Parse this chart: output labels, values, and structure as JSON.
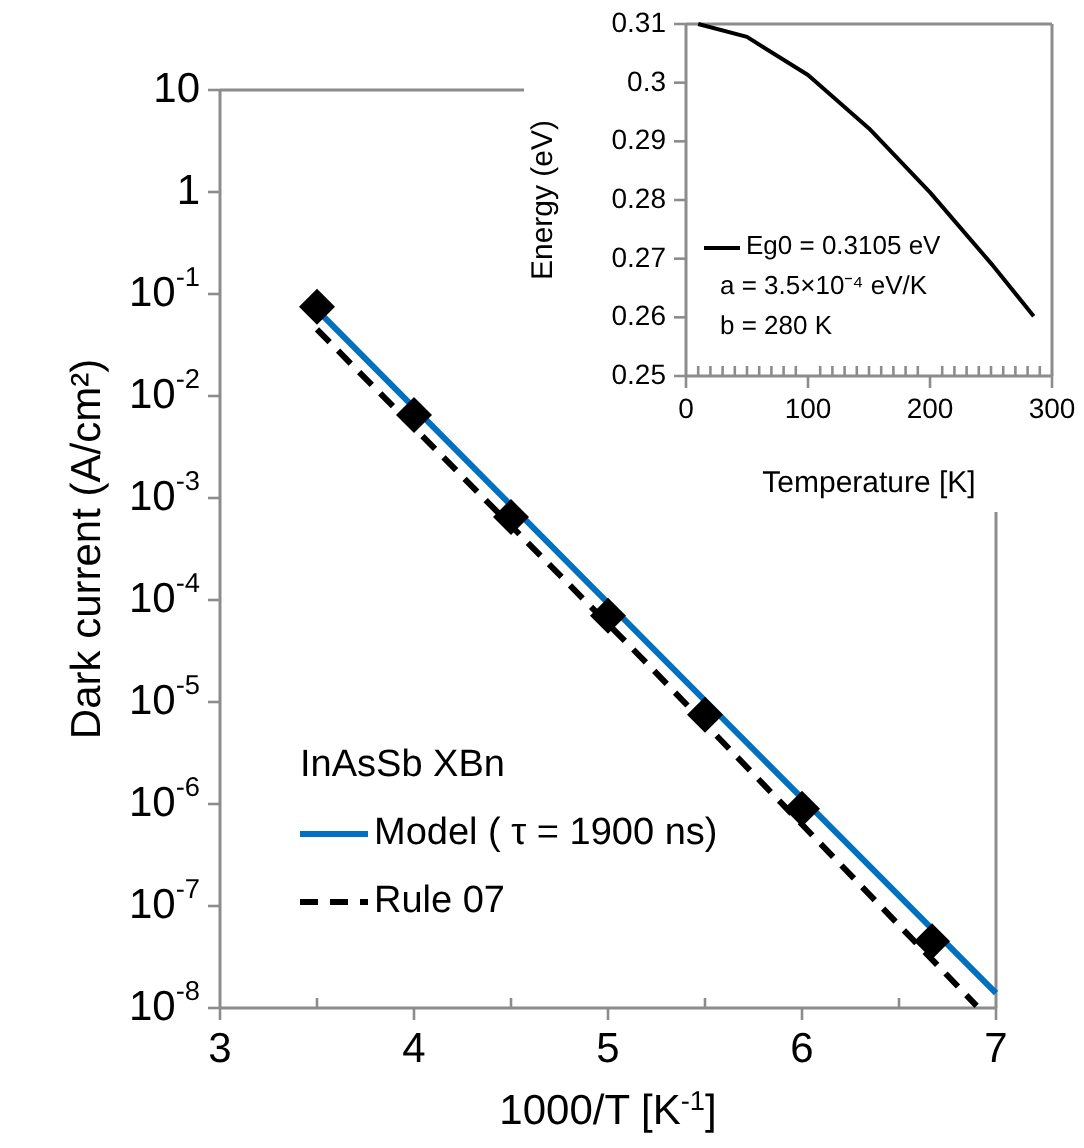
{
  "chart_data": [
    {
      "type": "line",
      "xlabel": "1000/T [K$^{-1}$]",
      "ylabel": "Dark current (A/cm²)",
      "legend_title": "InAsSb XBn",
      "legend": "bottom left",
      "log": "y",
      "grid": false,
      "xlim": [
        3,
        7
      ],
      "xticks": [
        3,
        {
          "value": 3.5,
          "label": null
        },
        4,
        {
          "value": 4.5,
          "label": null
        },
        5,
        {
          "value": 5.5,
          "label": null
        },
        6,
        {
          "value": 6.5,
          "label": null
        },
        7
      ],
      "ylim": [
        1e-08,
        10
      ],
      "yticks": [
        10,
        1,
        {
          "value": 0.1,
          "label": "10$^{-1}$"
        },
        {
          "value": 0.01,
          "label": "10$^{-2}$"
        },
        {
          "value": 0.001,
          "label": "10$^{-3}$"
        },
        {
          "value": 0.0001,
          "label": "10$^{-4}$"
        },
        {
          "value": 1e-05,
          "label": "10$^{-5}$"
        },
        {
          "value": 1e-06,
          "label": "10$^{-6}$"
        },
        {
          "value": 1e-07,
          "label": "10$^{-7}$"
        },
        {
          "value": 1e-08,
          "label": "10$^{-8}$"
        }
      ],
      "series": [
        {
          "name": "Model (  τ = 1900 ns)",
          "type": "line",
          "color": "#0070c0",
          "line_style": "solid",
          "marker": "none",
          "x": [
            3.5,
            5.25,
            7
          ],
          "values": [
            0.07,
            3.1e-05,
            1.4e-08
          ]
        },
        {
          "name": "Rule 07",
          "type": "line",
          "color": "#000000",
          "line_style": "dashed",
          "marker": "none",
          "x": [
            3.5,
            5.2,
            6.9
          ],
          "values": [
            0.045,
            2.4e-05,
            1.05e-08
          ]
        },
        {
          "type": "scatter",
          "color": "#000000",
          "marker": "diamond",
          "x": [
            3.5,
            4,
            4.5,
            5,
            5.5,
            6,
            6.67
          ],
          "values": [
            0.075,
            0.0065,
            0.00065,
            7e-05,
            7.5e-06,
            9e-07,
            4.5e-08
          ]
        }
      ]
    },
    {
      "type": "line",
      "xlabel": "Temperature [K]",
      "ylabel": "Energy (eV)",
      "legend": "bottom left",
      "grid": false,
      "xlim": [
        0,
        300
      ],
      "xticks": [
        0,
        {
          "value": 10,
          "label": null
        },
        {
          "value": 20,
          "label": null
        },
        {
          "value": 30,
          "label": null
        },
        {
          "value": 40,
          "label": null
        },
        {
          "value": 50,
          "label": null
        },
        {
          "value": 60,
          "label": null
        },
        {
          "value": 70,
          "label": null
        },
        {
          "value": 80,
          "label": null
        },
        {
          "value": 90,
          "label": null
        },
        100,
        {
          "value": 110,
          "label": null
        },
        {
          "value": 120,
          "label": null
        },
        {
          "value": 130,
          "label": null
        },
        {
          "value": 140,
          "label": null
        },
        {
          "value": 150,
          "label": null
        },
        {
          "value": 160,
          "label": null
        },
        {
          "value": 170,
          "label": null
        },
        {
          "value": 180,
          "label": null
        },
        {
          "value": 190,
          "label": null
        },
        200,
        {
          "value": 210,
          "label": null
        },
        {
          "value": 220,
          "label": null
        },
        {
          "value": 230,
          "label": null
        },
        {
          "value": 240,
          "label": null
        },
        {
          "value": 250,
          "label": null
        },
        {
          "value": 260,
          "label": null
        },
        {
          "value": 270,
          "label": null
        },
        {
          "value": 280,
          "label": null
        },
        {
          "value": 290,
          "label": null
        },
        300
      ],
      "ylim": [
        0.25,
        0.31
      ],
      "yticks": [
        0.25,
        0.26,
        0.27,
        0.28,
        0.29,
        0.3,
        0.31
      ],
      "annotations": [
        "a = 3.5×10⁻⁴ eV/K",
        "b = 280 K"
      ],
      "series": [
        {
          "name": "Eg0 = 0.3105 eV",
          "type": "line",
          "color": "#000000",
          "line_style": "solid",
          "marker": "none",
          "x": [
            10,
            50,
            100,
            150,
            200,
            250,
            285
          ],
          "values": [
            0.31,
            0.3078,
            0.3013,
            0.2922,
            0.2813,
            0.2692,
            0.2602
          ]
        }
      ]
    }
  ]
}
